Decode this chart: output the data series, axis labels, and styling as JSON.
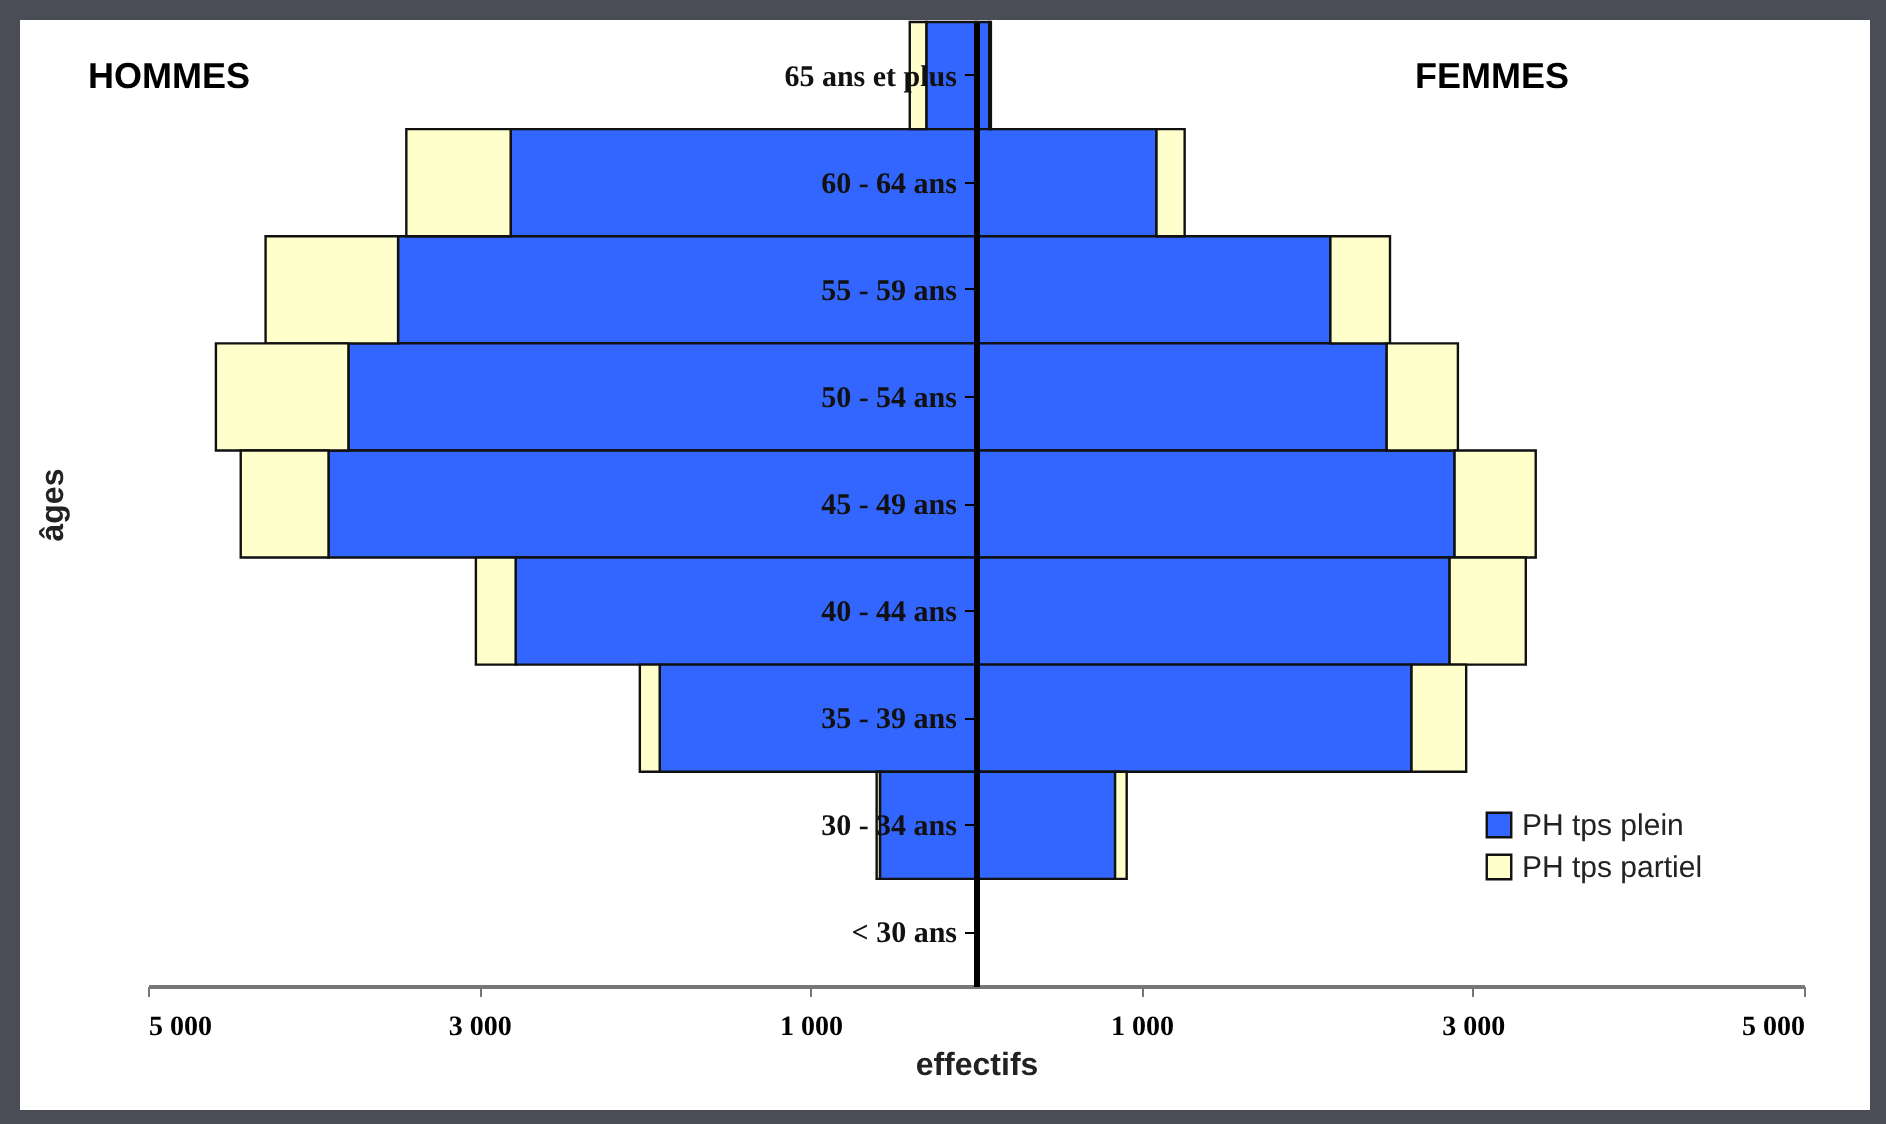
{
  "chart_data": {
    "type": "bar",
    "orientation": "horizontal",
    "stacked": true,
    "xlabel": "effectifs",
    "ylabel": "âges",
    "annotations": [
      "HOMMES",
      "FEMMES"
    ],
    "categories": [
      "65 ans et plus",
      "60 - 64 ans",
      "55 - 59 ans",
      "50 - 54 ans",
      "45 - 49 ans",
      "40 - 44 ans",
      "35 - 39 ans",
      "30 - 34 ans",
      "< 30 ans"
    ],
    "series": [
      {
        "color": "#3366ff",
        "values": [
          -300,
          -2810,
          -3490,
          -3790,
          -3910,
          -2780,
          -1910,
          -580,
          null
        ]
      },
      {
        "color": "#ffffcc",
        "values": [
          -100,
          -630,
          -800,
          -800,
          -530,
          -240,
          -120,
          -20,
          null
        ]
      },
      {
        "name": "PH tps plein",
        "color": "#3366ff",
        "values": [
          80,
          1090,
          2140,
          2480,
          2890,
          2860,
          2630,
          840,
          null
        ]
      },
      {
        "name": "PH tps partiel",
        "color": "#ffffcc",
        "values": [
          10,
          170,
          360,
          430,
          490,
          460,
          330,
          70,
          null
        ]
      }
    ],
    "xlim": [
      -5000,
      5000
    ],
    "xticks": [
      {
        "value": -5000,
        "label": "5 000"
      },
      {
        "value": -3000,
        "label": "3 000"
      },
      {
        "value": -1000,
        "label": "1 000"
      },
      {
        "value": 1000,
        "label": "1 000"
      },
      {
        "value": 3000,
        "label": "3 000"
      },
      {
        "value": 5000,
        "label": "5 000"
      }
    ],
    "grid": false,
    "legend": "bottom right"
  }
}
